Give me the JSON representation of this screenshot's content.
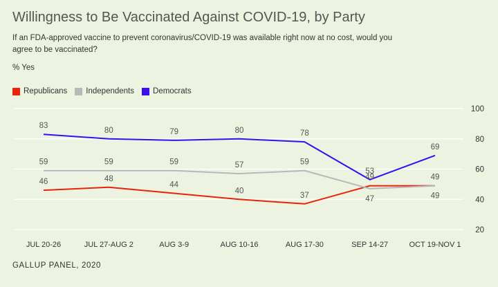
{
  "title": "Willingness to Be Vaccinated Against COVID-19, by Party",
  "subtitle": "If an FDA-approved vaccine to prevent coronavirus/COVID-19 was available right now at no cost, would you agree to be vaccinated?",
  "unit_label": "% Yes",
  "source": "GALLUP PANEL, 2020",
  "colors": {
    "grid": "#ffffff",
    "axis_text": "#333333",
    "label_text": "#555555"
  },
  "chart_data": {
    "type": "line",
    "title": "Willingness to Be Vaccinated Against COVID-19, by Party",
    "xlabel": "",
    "ylabel": "% Yes",
    "categories": [
      "JUL 20-26",
      "JUL 27-AUG 2",
      "AUG 3-9",
      "AUG 10-16",
      "AUG 17-30",
      "SEP 14-27",
      "OCT 19-NOV 1"
    ],
    "ylim": [
      20,
      100
    ],
    "yticks": [
      20,
      40,
      60,
      80,
      100
    ],
    "grid": true,
    "legend": "top-left",
    "series": [
      {
        "name": "Republicans",
        "color": "#e8230a",
        "values": [
          46,
          48,
          44,
          40,
          37,
          49,
          49
        ],
        "label_positions": [
          "above",
          "above",
          "above",
          "above",
          "above",
          "above",
          "above"
        ]
      },
      {
        "name": "Independents",
        "color": "#b8b8b8",
        "values": [
          59,
          59,
          59,
          57,
          59,
          47,
          49
        ],
        "label_positions": [
          "above",
          "above",
          "above",
          "above",
          "above",
          "below",
          "below"
        ]
      },
      {
        "name": "Democrats",
        "color": "#3a0cef",
        "values": [
          83,
          80,
          79,
          80,
          78,
          53,
          69
        ],
        "label_positions": [
          "above",
          "above",
          "above",
          "above",
          "above",
          "above",
          "above"
        ]
      }
    ]
  }
}
